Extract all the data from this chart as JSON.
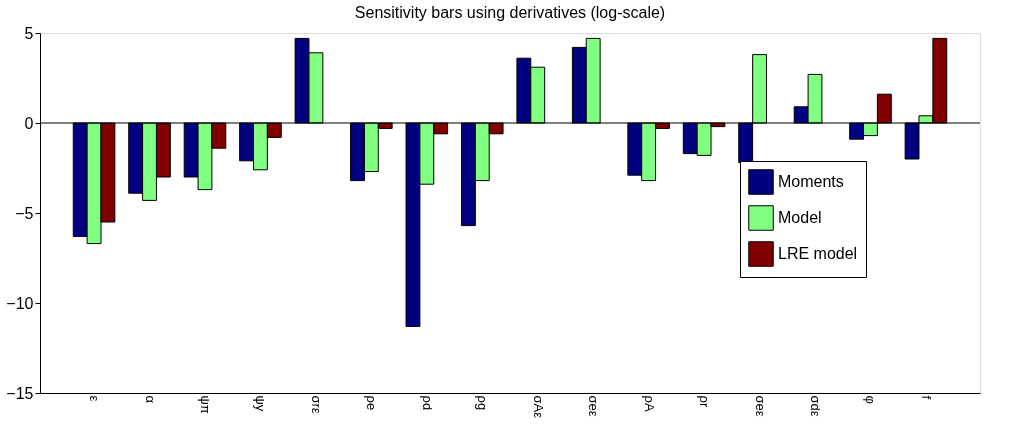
{
  "chart_data": {
    "type": "bar",
    "title": "Sensitivity bars using derivatives (log-scale)",
    "categories": [
      "ε",
      "α",
      "ψπ",
      "ψy",
      "σrε",
      "ρe",
      "ρd",
      "ρg",
      "σAε",
      "σeε",
      "ρA",
      "ρr",
      "σeε",
      "σdε",
      "φ",
      "f"
    ],
    "series": [
      {
        "name": "Moments",
        "color": "#000080",
        "values": [
          -6.3,
          -3.9,
          -3.0,
          -2.1,
          4.7,
          -3.2,
          -11.3,
          -5.7,
          3.6,
          4.2,
          -2.9,
          -1.7,
          -2.2,
          0.9,
          -0.9,
          -2.0
        ]
      },
      {
        "name": "Model",
        "color": "#80ff80",
        "values": [
          -6.7,
          -4.3,
          -3.7,
          -2.6,
          3.9,
          -2.7,
          -3.4,
          -3.2,
          3.1,
          4.7,
          -3.2,
          -1.8,
          3.8,
          2.7,
          -0.7,
          0.4
        ]
      },
      {
        "name": "LRE model",
        "color": "#800000",
        "values": [
          -5.5,
          -3.0,
          -1.4,
          -0.8,
          null,
          -0.3,
          -0.6,
          -0.6,
          null,
          null,
          -0.3,
          -0.2,
          null,
          null,
          1.6,
          4.7
        ]
      }
    ],
    "ylim": [
      -15,
      5
    ],
    "yticks": [
      -15,
      -10,
      -5,
      0,
      5
    ],
    "grid": false,
    "legend": "right",
    "ref_lines": [
      {
        "axis": "y",
        "value": 0,
        "color": "#000000"
      }
    ]
  }
}
